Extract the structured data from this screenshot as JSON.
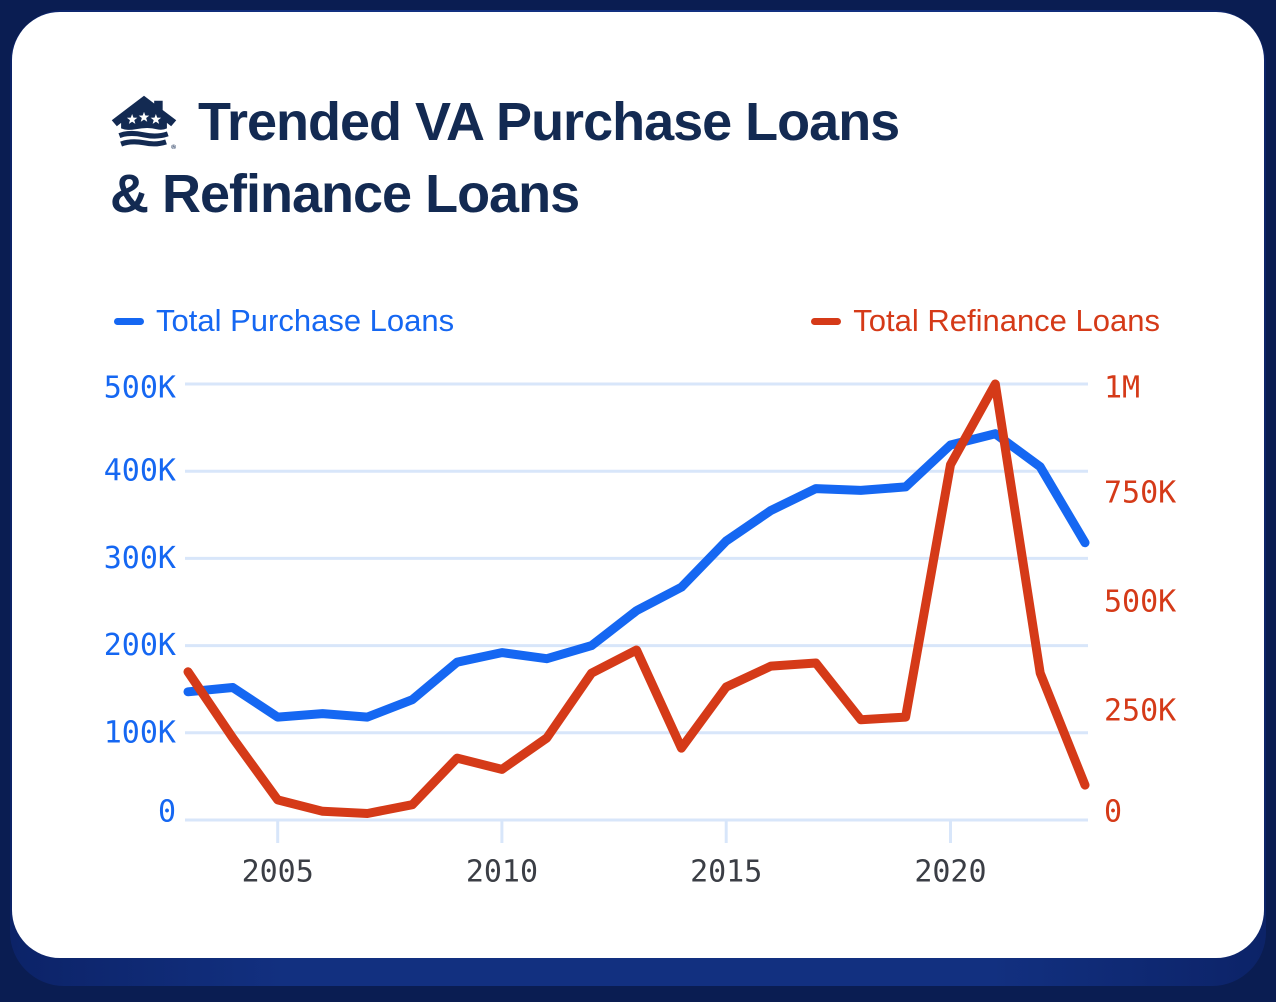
{
  "card": {
    "title_line1": "Trended VA Purchase Loans",
    "title_line2": "& Refinance Loans",
    "trademark": "®"
  },
  "legend": {
    "purchase_label": "Total Purchase Loans",
    "refinance_label": "Total Refinance Loans"
  },
  "colors": {
    "navy_title": "#132a52",
    "frame_outer": "#0a1d52",
    "frame_inner": "#123080",
    "purchase_line": "#1567f2",
    "refinance_line": "#d53a18",
    "gridline": "#d8e6fa",
    "x_label": "#3b3e45"
  },
  "chart_data": {
    "type": "line",
    "title": "Trended VA Purchase Loans & Refinance Loans",
    "x": [
      2003,
      2004,
      2005,
      2006,
      2007,
      2008,
      2009,
      2010,
      2011,
      2012,
      2013,
      2014,
      2015,
      2016,
      2017,
      2018,
      2019,
      2020,
      2021,
      2022,
      2023
    ],
    "series": [
      {
        "name": "Total Purchase Loans",
        "axis": "left",
        "color": "#1567f2",
        "values_k": [
          147,
          152,
          118,
          122,
          118,
          138,
          181,
          192,
          185,
          200,
          240,
          267,
          320,
          355,
          380,
          378,
          382,
          430,
          443,
          405,
          318
        ]
      },
      {
        "name": "Total Refinance Loans",
        "axis": "right",
        "color": "#d53a18",
        "values_k": [
          340,
          188,
          46,
          20,
          15,
          35,
          142,
          116,
          188,
          337,
          390,
          165,
          305,
          353,
          360,
          230,
          236,
          815,
          1000,
          337,
          80
        ]
      }
    ],
    "left_axis": {
      "ticks": [
        "500K",
        "400K",
        "300K",
        "200K",
        "100K",
        "0"
      ],
      "tick_values_k": [
        500,
        400,
        300,
        200,
        100,
        0
      ],
      "max_k": 500,
      "color": "#1567f2"
    },
    "right_axis": {
      "ticks": [
        "1M",
        "750K",
        "500K",
        "250K",
        "0"
      ],
      "tick_values_k": [
        1000,
        750,
        500,
        250,
        0
      ],
      "max_k": 1000,
      "color": "#d53a18"
    },
    "x_axis": {
      "tick_years": [
        2005,
        2010,
        2015,
        2020
      ],
      "range": [
        2003,
        2023
      ],
      "color": "#3b3e45"
    },
    "grid": true,
    "legend_position": "top"
  }
}
